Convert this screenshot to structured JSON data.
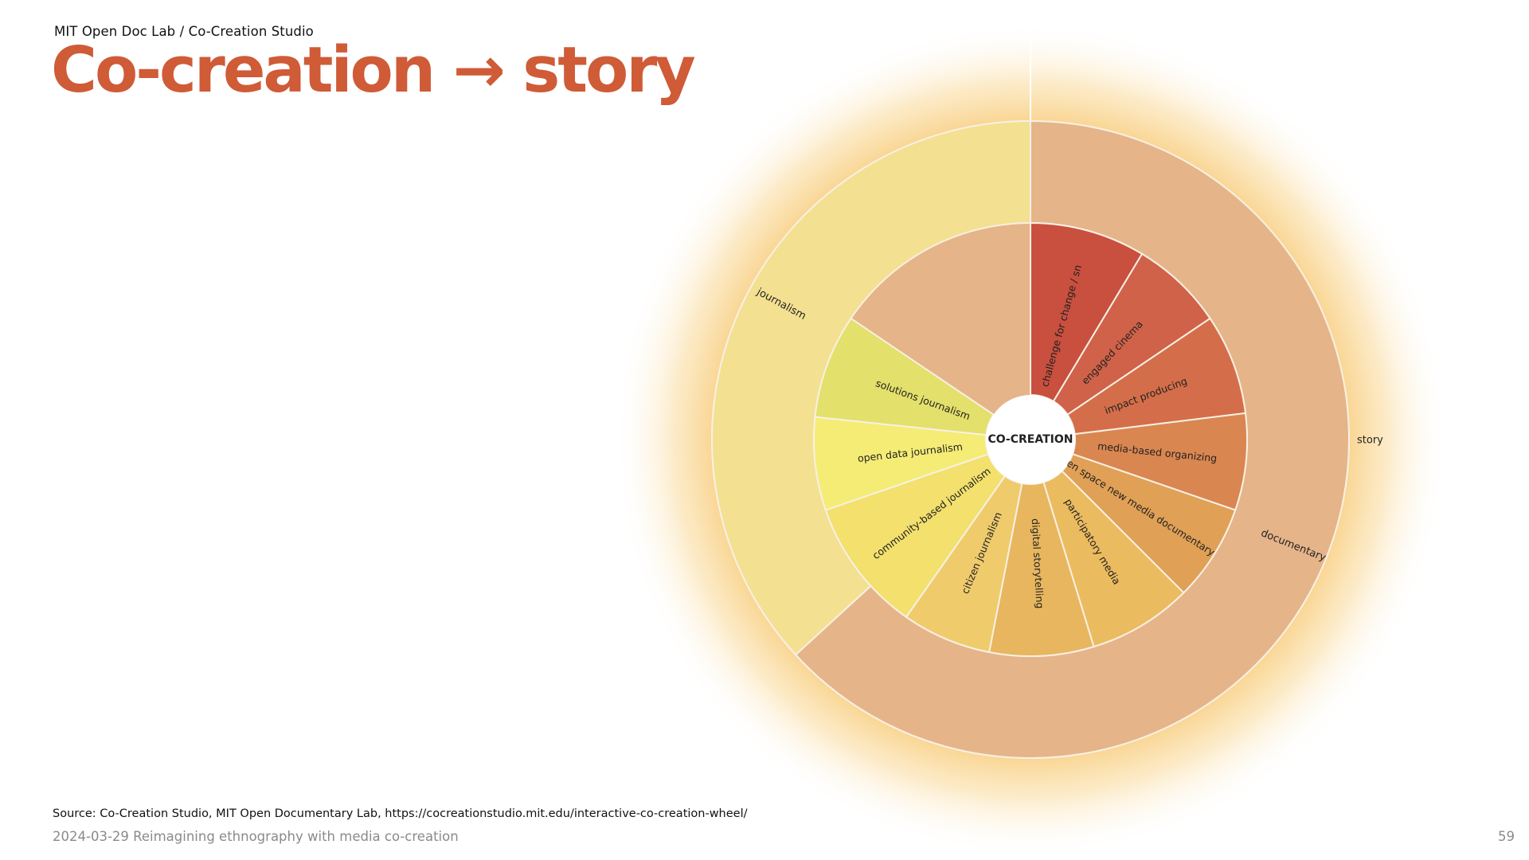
{
  "header": {
    "kicker": "MIT Open Doc Lab / Co-Creation Studio",
    "title": "Co-creation → story"
  },
  "wheel": {
    "center_label": "CO-CREATION",
    "outer_label": "story",
    "groups": [
      {
        "label": "documentary",
        "color": "#e6b489",
        "children": [
          {
            "label": "challenge for change / sn",
            "color": "#c94f3f"
          },
          {
            "label": "engaged cinema",
            "color": "#d0624a"
          },
          {
            "label": "impact producing",
            "color": "#d46e4a"
          },
          {
            "label": "media-based organizing",
            "color": "#da8650"
          },
          {
            "label": "open space new media documentary",
            "color": "#e0a056"
          },
          {
            "label": "participatory media",
            "color": "#ebbb5f"
          },
          {
            "label": "digital storytelling",
            "color": "#e8b65f"
          }
        ]
      },
      {
        "label": "journalism",
        "color": "#f3e091",
        "children": [
          {
            "label": "citizen journalism",
            "color": "#efcb6c"
          },
          {
            "label": "community-based journalism",
            "color": "#f3e06d"
          },
          {
            "label": "open data journalism",
            "color": "#f5ec76"
          },
          {
            "label": "solutions journalism",
            "color": "#e3e06b"
          }
        ]
      }
    ],
    "colors": {
      "background": "#ffffff",
      "story_ring": "#e6b489",
      "glow": "#f7cf7c",
      "center": "#ffffff",
      "label_text": "#222222"
    }
  },
  "footer": {
    "source": "Source: Co-Creation Studio, MIT Open Documentary Lab,  https://cocreationstudio.mit.edu/interactive-co-creation-wheel/",
    "left": "2024-03-29 Reimagining ethnography with media co-creation",
    "page": "59"
  }
}
